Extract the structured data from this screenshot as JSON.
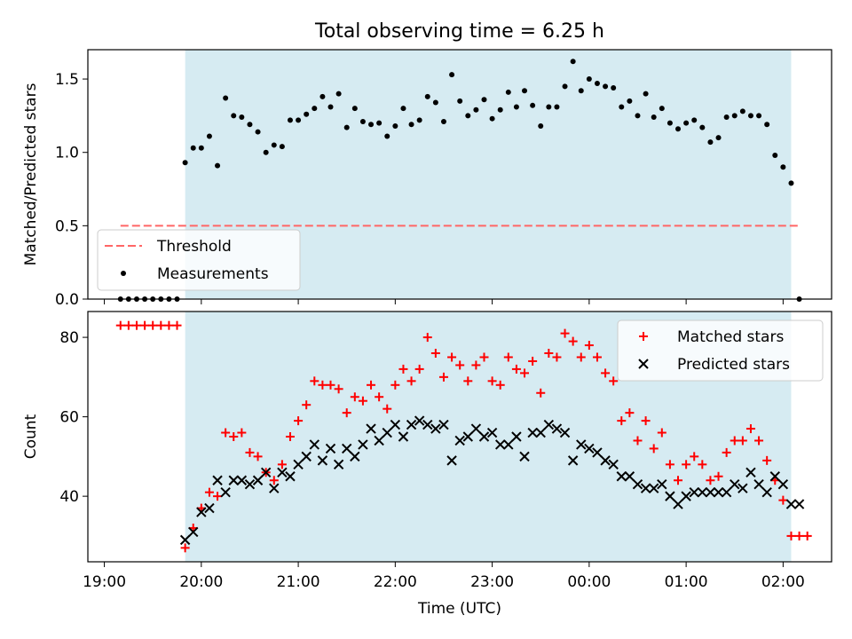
{
  "figure": {
    "title": "Total observing time = 6.25 h"
  },
  "colors": {
    "shade": "#add8e6",
    "threshold": "#ff6666",
    "measurements": "#000000",
    "matched": "#ff0000",
    "predicted": "#000000"
  },
  "chart_data": [
    {
      "type": "scatter",
      "xlabel": "",
      "ylabel": "Matched/Predicted stars",
      "ylim": [
        0,
        1.7
      ],
      "xlim_hours": [
        18.83,
        26.5
      ],
      "y_ticks": [
        "0.0",
        "0.5",
        "1.0",
        "1.5"
      ],
      "y_tick_values": [
        0,
        0.5,
        1.0,
        1.5
      ],
      "shaded_interval": [
        "19:50",
        "02:05"
      ],
      "threshold": 0.5,
      "threshold_x_range": [
        "19:10",
        "02:10"
      ],
      "legend": {
        "position": "lower-left",
        "entries": [
          "Threshold",
          "Measurements"
        ]
      },
      "series": [
        {
          "name": "Measurements",
          "x": [
            "19:10",
            "19:15",
            "19:20",
            "19:25",
            "19:30",
            "19:35",
            "19:40",
            "19:45",
            "19:50",
            "19:55",
            "20:00",
            "20:05",
            "20:10",
            "20:15",
            "20:20",
            "20:25",
            "20:30",
            "20:35",
            "20:40",
            "20:45",
            "20:50",
            "20:55",
            "21:00",
            "21:05",
            "21:10",
            "21:15",
            "21:20",
            "21:25",
            "21:30",
            "21:35",
            "21:40",
            "21:45",
            "21:50",
            "21:55",
            "22:00",
            "22:05",
            "22:10",
            "22:15",
            "22:20",
            "22:25",
            "22:30",
            "22:35",
            "22:40",
            "22:45",
            "22:50",
            "22:55",
            "23:00",
            "23:05",
            "23:10",
            "23:15",
            "23:20",
            "23:25",
            "23:30",
            "23:35",
            "23:40",
            "23:45",
            "23:50",
            "23:55",
            "00:00",
            "00:05",
            "00:10",
            "00:15",
            "00:20",
            "00:25",
            "00:30",
            "00:35",
            "00:40",
            "00:45",
            "00:50",
            "00:55",
            "01:00",
            "01:05",
            "01:10",
            "01:15",
            "01:20",
            "01:25",
            "01:30",
            "01:35",
            "01:40",
            "01:45",
            "01:50",
            "01:55",
            "02:00",
            "02:05",
            "02:10"
          ],
          "y": [
            0,
            0,
            0,
            0,
            0,
            0,
            0,
            0,
            0.93,
            1.03,
            1.03,
            1.11,
            0.91,
            1.37,
            1.25,
            1.24,
            1.19,
            1.14,
            1.0,
            1.05,
            1.04,
            1.22,
            1.22,
            1.26,
            1.3,
            1.38,
            1.31,
            1.4,
            1.17,
            1.3,
            1.21,
            1.19,
            1.2,
            1.11,
            1.18,
            1.3,
            1.19,
            1.22,
            1.38,
            1.34,
            1.21,
            1.53,
            1.35,
            1.25,
            1.29,
            1.36,
            1.23,
            1.29,
            1.41,
            1.31,
            1.42,
            1.32,
            1.18,
            1.31,
            1.31,
            1.45,
            1.62,
            1.42,
            1.5,
            1.47,
            1.45,
            1.44,
            1.31,
            1.35,
            1.25,
            1.4,
            1.24,
            1.3,
            1.2,
            1.16,
            1.2,
            1.22,
            1.17,
            1.07,
            1.1,
            1.24,
            1.25,
            1.28,
            1.25,
            1.25,
            1.19,
            0.98,
            0.9,
            0.79,
            0
          ]
        }
      ]
    },
    {
      "type": "scatter",
      "xlabel": "Time (UTC)",
      "ylabel": "Count",
      "ylim": [
        23.5,
        86.5
      ],
      "xlim_hours": [
        18.83,
        26.5
      ],
      "x_ticks": [
        "19:00",
        "20:00",
        "21:00",
        "22:00",
        "23:00",
        "00:00",
        "01:00",
        "02:00"
      ],
      "y_ticks": [
        "40",
        "60",
        "80"
      ],
      "y_tick_values": [
        40,
        60,
        80
      ],
      "shaded_interval": [
        "19:50",
        "02:05"
      ],
      "legend": {
        "position": "upper-right",
        "entries": [
          "Matched stars",
          "Predicted stars"
        ]
      },
      "series": [
        {
          "name": "Matched stars",
          "x": [
            "19:10",
            "19:15",
            "19:20",
            "19:25",
            "19:30",
            "19:35",
            "19:40",
            "19:45",
            "19:50",
            "19:55",
            "20:00",
            "20:05",
            "20:10",
            "20:15",
            "20:20",
            "20:25",
            "20:30",
            "20:35",
            "20:40",
            "20:45",
            "20:50",
            "20:55",
            "21:00",
            "21:05",
            "21:10",
            "21:15",
            "21:20",
            "21:25",
            "21:30",
            "21:35",
            "21:40",
            "21:45",
            "21:50",
            "21:55",
            "22:00",
            "22:05",
            "22:10",
            "22:15",
            "22:20",
            "22:25",
            "22:30",
            "22:35",
            "22:40",
            "22:45",
            "22:50",
            "22:55",
            "23:00",
            "23:05",
            "23:10",
            "23:15",
            "23:20",
            "23:25",
            "23:30",
            "23:35",
            "23:40",
            "23:45",
            "23:50",
            "23:55",
            "00:00",
            "00:05",
            "00:10",
            "00:15",
            "00:20",
            "00:25",
            "00:30",
            "00:35",
            "00:40",
            "00:45",
            "00:50",
            "00:55",
            "01:00",
            "01:05",
            "01:10",
            "01:15",
            "01:20",
            "01:25",
            "01:30",
            "01:35",
            "01:40",
            "01:45",
            "01:50",
            "01:55",
            "02:00",
            "02:05",
            "02:10",
            "02:15"
          ],
          "y": [
            83,
            83,
            83,
            83,
            83,
            83,
            83,
            83,
            27,
            32,
            37,
            41,
            40,
            56,
            55,
            56,
            51,
            50,
            46,
            44,
            48,
            55,
            59,
            63,
            69,
            68,
            68,
            67,
            61,
            65,
            64,
            68,
            65,
            62,
            68,
            72,
            69,
            72,
            80,
            76,
            70,
            75,
            73,
            69,
            73,
            75,
            69,
            68,
            75,
            72,
            71,
            74,
            66,
            76,
            75,
            81,
            79,
            75,
            78,
            75,
            71,
            69,
            59,
            61,
            54,
            59,
            52,
            56,
            48,
            44,
            48,
            50,
            48,
            44,
            45,
            51,
            54,
            54,
            57,
            54,
            49,
            44,
            39,
            30,
            30,
            30
          ]
        },
        {
          "name": "Predicted stars",
          "x": [
            "19:50",
            "19:55",
            "20:00",
            "20:05",
            "20:10",
            "20:15",
            "20:20",
            "20:25",
            "20:30",
            "20:35",
            "20:40",
            "20:45",
            "20:50",
            "20:55",
            "21:00",
            "21:05",
            "21:10",
            "21:15",
            "21:20",
            "21:25",
            "21:30",
            "21:35",
            "21:40",
            "21:45",
            "21:50",
            "21:55",
            "22:00",
            "22:05",
            "22:10",
            "22:15",
            "22:20",
            "22:25",
            "22:30",
            "22:35",
            "22:40",
            "22:45",
            "22:50",
            "22:55",
            "23:00",
            "23:05",
            "23:10",
            "23:15",
            "23:20",
            "23:25",
            "23:30",
            "23:35",
            "23:40",
            "23:45",
            "23:50",
            "23:55",
            "00:00",
            "00:05",
            "00:10",
            "00:15",
            "00:20",
            "00:25",
            "00:30",
            "00:35",
            "00:40",
            "00:45",
            "00:50",
            "00:55",
            "01:00",
            "01:05",
            "01:10",
            "01:15",
            "01:20",
            "01:25",
            "01:30",
            "01:35",
            "01:40",
            "01:45",
            "01:50",
            "01:55",
            "02:00",
            "02:05",
            "02:10"
          ],
          "y": [
            29,
            31,
            36,
            37,
            44,
            41,
            44,
            44,
            43,
            44,
            46,
            42,
            46,
            45,
            48,
            50,
            53,
            49,
            52,
            48,
            52,
            50,
            53,
            57,
            54,
            56,
            58,
            55,
            58,
            59,
            58,
            57,
            58,
            49,
            54,
            55,
            57,
            55,
            56,
            53,
            53,
            55,
            50,
            56,
            56,
            58,
            57,
            56,
            49,
            53,
            52,
            51,
            49,
            48,
            45,
            45,
            43,
            42,
            42,
            43,
            40,
            38,
            40,
            41,
            41,
            41,
            41,
            41,
            43,
            42,
            46,
            43,
            41,
            45,
            43,
            38,
            38
          ]
        }
      ]
    }
  ]
}
